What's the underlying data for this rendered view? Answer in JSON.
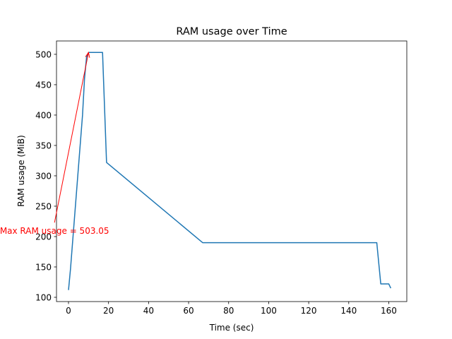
{
  "chart_data": {
    "type": "line",
    "title": "RAM usage over Time",
    "xlabel": "Time (sec)",
    "ylabel": "RAM usage (MiB)",
    "xlim": [
      -6,
      169
    ],
    "ylim": [
      93,
      522
    ],
    "xticks": [
      0,
      20,
      40,
      60,
      80,
      100,
      120,
      140,
      160
    ],
    "yticks": [
      100,
      150,
      200,
      250,
      300,
      350,
      400,
      450,
      500
    ],
    "grid": false,
    "series": [
      {
        "color": "#1f77b4",
        "x": [
          0,
          1,
          7,
          8,
          9,
          10,
          11,
          12,
          13,
          14,
          15,
          16,
          17,
          19,
          67,
          154,
          156,
          157,
          160,
          161
        ],
        "y": [
          112,
          147,
          400,
          460,
          495,
          503.05,
          503.05,
          503.05,
          503.05,
          503.05,
          503.05,
          503.05,
          503.05,
          322,
          190,
          190,
          122,
          122,
          122,
          115
        ]
      }
    ],
    "annotation": {
      "text": "Max RAM usage = 503.05",
      "color": "#ff0000",
      "xy": [
        10,
        503.05
      ],
      "xytext": [
        -7,
        223
      ]
    }
  }
}
